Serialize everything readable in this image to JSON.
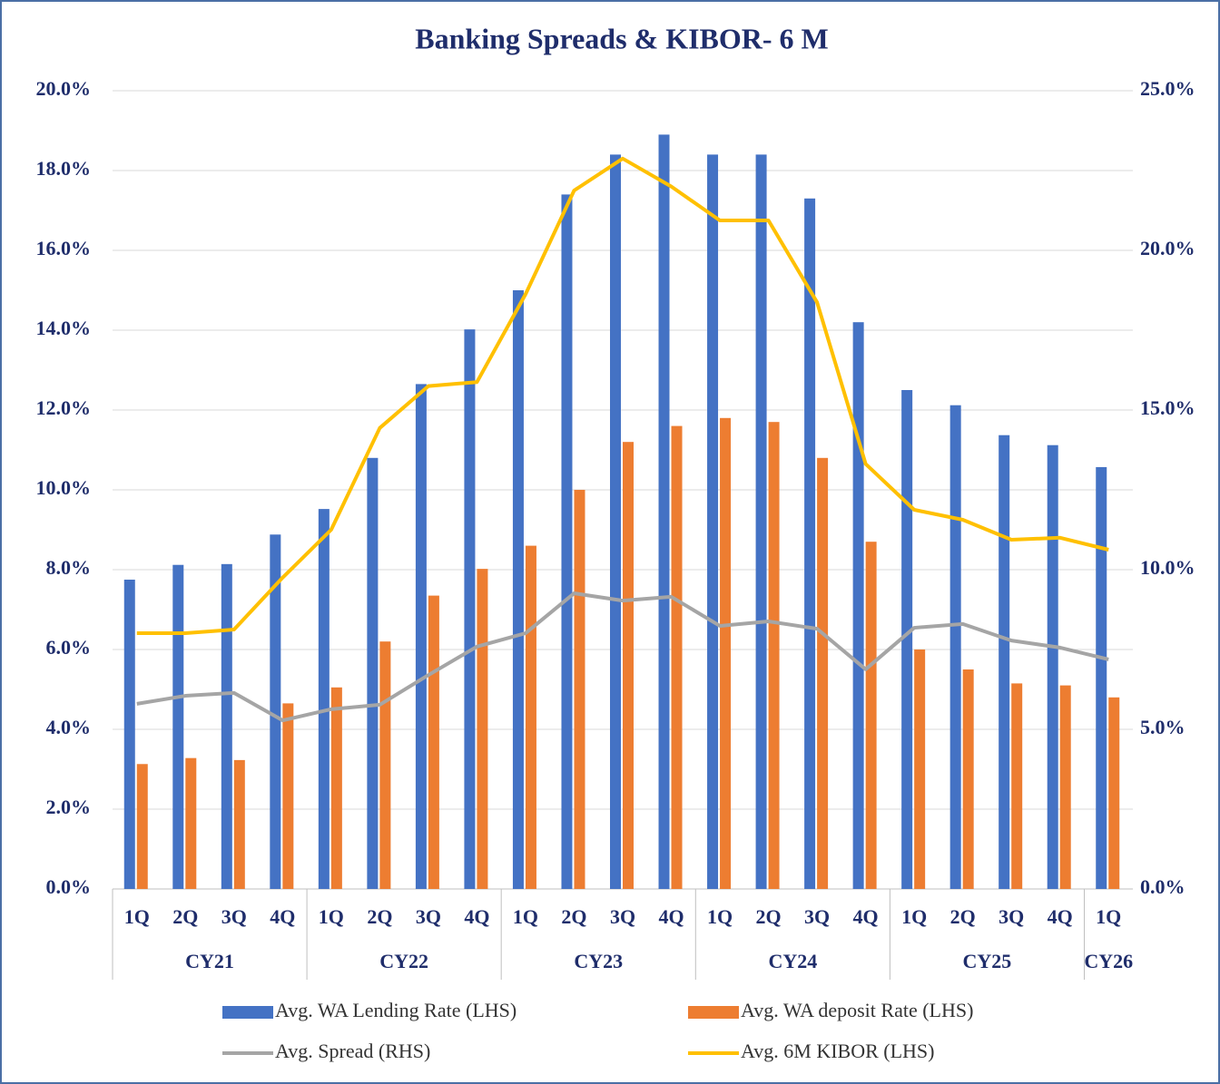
{
  "chart_data": {
    "type": "bar_line",
    "title": "Banking Spreads & KIBOR- 6 M",
    "groups": [
      {
        "label": "CY21",
        "categories": [
          "1Q",
          "2Q",
          "3Q",
          "4Q"
        ]
      },
      {
        "label": "CY22",
        "categories": [
          "1Q",
          "2Q",
          "3Q",
          "4Q"
        ]
      },
      {
        "label": "CY23",
        "categories": [
          "1Q",
          "2Q",
          "3Q",
          "4Q"
        ]
      },
      {
        "label": "CY24",
        "categories": [
          "1Q",
          "2Q",
          "3Q",
          "4Q"
        ]
      },
      {
        "label": "CY25",
        "categories": [
          "1Q",
          "2Q",
          "3Q",
          "4Q"
        ]
      },
      {
        "label": "CY26",
        "categories": [
          "1Q"
        ]
      }
    ],
    "series": [
      {
        "name": "Avg. WA Lending Rate (LHS)",
        "type": "bar",
        "color": "#4472c4",
        "values": [
          7.75,
          8.12,
          8.14,
          8.88,
          9.52,
          10.8,
          12.65,
          14.02,
          15.0,
          17.4,
          18.4,
          18.9,
          18.4,
          18.4,
          17.3,
          14.2,
          12.5,
          12.12,
          11.37,
          11.12,
          10.57
        ]
      },
      {
        "name": "Avg. WA deposit Rate (LHS)",
        "type": "bar",
        "color": "#ed7d31",
        "values": [
          3.13,
          3.28,
          3.23,
          4.65,
          5.05,
          6.2,
          7.35,
          8.02,
          8.6,
          10.0,
          11.2,
          11.6,
          11.8,
          11.7,
          10.8,
          8.7,
          6.0,
          5.5,
          5.15,
          5.1,
          4.8
        ]
      },
      {
        "name": "Avg. Spread (RHS)",
        "type": "line",
        "axis": "y2",
        "color": "#a5a5a5",
        "values": [
          5.8,
          6.05,
          6.14,
          5.28,
          5.63,
          5.77,
          6.7,
          7.59,
          8.01,
          9.26,
          9.03,
          9.15,
          8.24,
          8.38,
          8.15,
          6.88,
          8.18,
          8.3,
          7.78,
          7.56,
          7.19
        ]
      },
      {
        "name": "Avg. 6M KIBOR (LHS)",
        "type": "line",
        "color": "#ffc000",
        "values": [
          6.41,
          6.41,
          6.5,
          7.8,
          9.0,
          11.55,
          12.6,
          12.7,
          14.9,
          17.5,
          18.3,
          17.6,
          16.75,
          16.75,
          14.7,
          10.65,
          9.5,
          9.25,
          8.75,
          8.8,
          8.5
        ]
      }
    ],
    "ylim": [
      0,
      20
    ],
    "yticks": [
      {
        "value": 0,
        "label": "0.0%"
      },
      {
        "value": 2,
        "label": "2.0%"
      },
      {
        "value": 4,
        "label": "4.0%"
      },
      {
        "value": 6,
        "label": "6.0%"
      },
      {
        "value": 8,
        "label": "8.0%"
      },
      {
        "value": 10,
        "label": "10.0%"
      },
      {
        "value": 12,
        "label": "12.0%"
      },
      {
        "value": 14,
        "label": "14.0%"
      },
      {
        "value": 16,
        "label": "16.0%"
      },
      {
        "value": 18,
        "label": "18.0%"
      },
      {
        "value": 20,
        "label": "20.0%"
      }
    ],
    "y2lim": [
      0,
      25
    ],
    "y2ticks": [
      {
        "value": 0,
        "label": "0.0%"
      },
      {
        "value": 5,
        "label": "5.0%"
      },
      {
        "value": 10,
        "label": "10.0%"
      },
      {
        "value": 15,
        "label": "15.0%"
      },
      {
        "value": 20,
        "label": "20.0%"
      },
      {
        "value": 25,
        "label": "25.0%"
      }
    ],
    "grid": true,
    "legend": "bottom"
  }
}
